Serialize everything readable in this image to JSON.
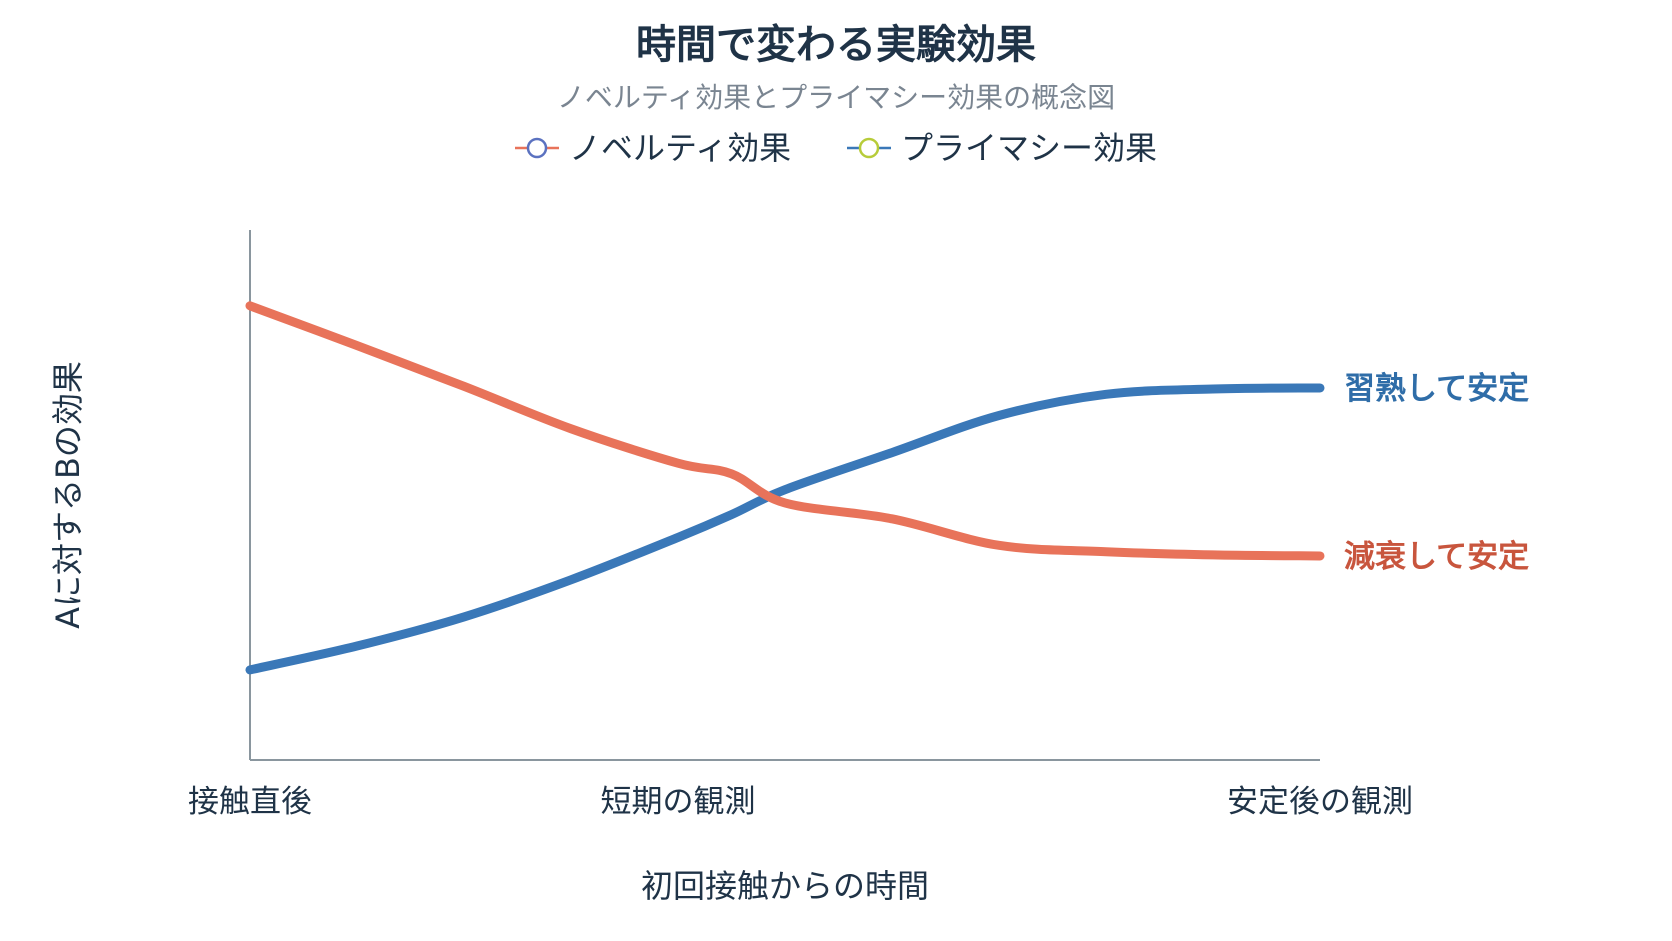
{
  "chart_data": {
    "type": "line",
    "title": "時間で変わる実験効果",
    "subtitle": "ノベルティ効果とプライマシー効果の概念図",
    "xlabel": "初回接触からの時間",
    "ylabel": "Aに対するBの効果",
    "x_ticks": [
      "接触直後",
      "短期の観測",
      "安定後の観測"
    ],
    "x": [
      0,
      0.1,
      0.2,
      0.3,
      0.4,
      0.45,
      0.5,
      0.6,
      0.7,
      0.8,
      0.9,
      1.0
    ],
    "xlim": [
      0,
      1
    ],
    "ylim": [
      0,
      1
    ],
    "legend_position": "top-center",
    "grid": false,
    "series": [
      {
        "name": "ノベルティ効果",
        "color": "#E8735A",
        "values": [
          0.857,
          0.782,
          0.705,
          0.625,
          0.56,
          0.54,
          0.485,
          0.455,
          0.405,
          0.393,
          0.387,
          0.385
        ],
        "end_label": "減衰して安定",
        "end_label_color": "#C8553D",
        "legend_marker_color": "#5B72C0"
      },
      {
        "name": "プライマシー効果",
        "color": "#3A78B8",
        "values": [
          0.17,
          0.215,
          0.27,
          0.34,
          0.42,
          0.463,
          0.51,
          0.58,
          0.65,
          0.69,
          0.7,
          0.702
        ],
        "end_label": "習熟して安定",
        "end_label_color": "#2F6DA8",
        "legend_marker_color": "#B7CC3A"
      }
    ]
  }
}
